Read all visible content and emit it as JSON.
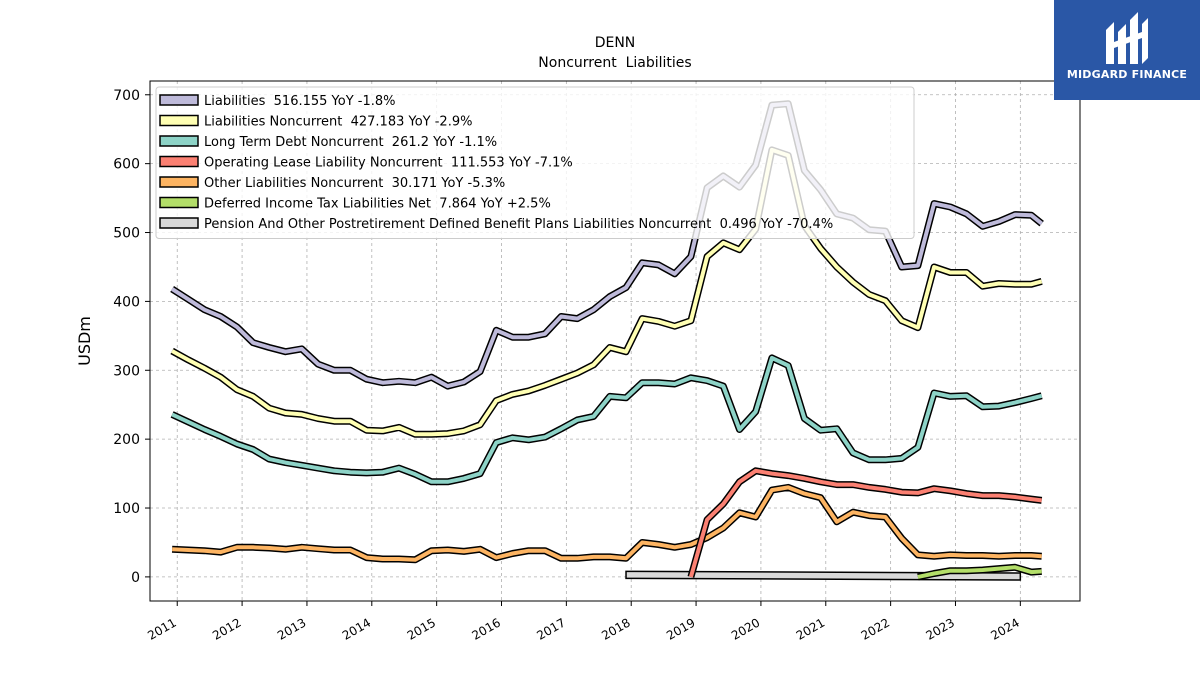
{
  "brand": {
    "name": "MIDGARD FINANCE",
    "color": "#2a57a6"
  },
  "chart_data": {
    "type": "line",
    "title": "DENN",
    "subtitle": "Noncurrent  Liabilities",
    "ylabel": "USDm",
    "xlabel": "",
    "ylim": [
      -35,
      720
    ],
    "xlim": [
      2010.58,
      2024.92
    ],
    "yticks": [
      0,
      100,
      200,
      300,
      400,
      500,
      600,
      700
    ],
    "xticks": [
      "2011",
      "2012",
      "2013",
      "2014",
      "2015",
      "2016",
      "2017",
      "2018",
      "2019",
      "2020",
      "2021",
      "2022",
      "2023",
      "2024"
    ],
    "grid": true,
    "legend_position": "top-left",
    "series": [
      {
        "name": "Liabilities",
        "legend": "Liabilities  516.155 YoY -1.8%",
        "color": "#bebada",
        "x": [
          2010.92,
          2011.17,
          2011.42,
          2011.67,
          2011.92,
          2012.17,
          2012.42,
          2012.67,
          2012.92,
          2013.17,
          2013.42,
          2013.67,
          2013.92,
          2014.17,
          2014.42,
          2014.67,
          2014.92,
          2015.17,
          2015.42,
          2015.67,
          2015.92,
          2016.17,
          2016.42,
          2016.67,
          2016.92,
          2017.17,
          2017.42,
          2017.67,
          2017.92,
          2018.17,
          2018.42,
          2018.67,
          2018.92,
          2019.17,
          2019.42,
          2019.67,
          2019.92,
          2020.17,
          2020.42,
          2020.67,
          2020.92,
          2021.17,
          2021.42,
          2021.67,
          2021.92,
          2022.17,
          2022.42,
          2022.67,
          2022.92,
          2023.17,
          2023.42,
          2023.67,
          2023.92,
          2024.17,
          2024.33
        ],
        "values": [
          418,
          403,
          388,
          378,
          363,
          340,
          333,
          327,
          331,
          309,
          300,
          300,
          287,
          282,
          284,
          282,
          290,
          277,
          283,
          298,
          358,
          348,
          348,
          353,
          378,
          375,
          388,
          407,
          420,
          456,
          453,
          440,
          465,
          565,
          582,
          566,
          598,
          685,
          687,
          590,
          562,
          527,
          521,
          504,
          502,
          450,
          452,
          542,
          537,
          527,
          509,
          516,
          526,
          525,
          513
        ]
      },
      {
        "name": "Liabilities Noncurrent",
        "legend": "Liabilities Noncurrent  427.183 YoY -2.9%",
        "color": "#ffffb3",
        "x": [
          2010.92,
          2011.17,
          2011.42,
          2011.67,
          2011.92,
          2012.17,
          2012.42,
          2012.67,
          2012.92,
          2013.17,
          2013.42,
          2013.67,
          2013.92,
          2014.17,
          2014.42,
          2014.67,
          2014.92,
          2015.17,
          2015.42,
          2015.67,
          2015.92,
          2016.17,
          2016.42,
          2016.67,
          2016.92,
          2017.17,
          2017.42,
          2017.67,
          2017.92,
          2018.17,
          2018.42,
          2018.67,
          2018.92,
          2019.17,
          2019.42,
          2019.67,
          2019.92,
          2020.17,
          2020.42,
          2020.67,
          2020.92,
          2021.17,
          2021.42,
          2021.67,
          2021.92,
          2022.17,
          2022.42,
          2022.67,
          2022.92,
          2023.17,
          2023.42,
          2023.67,
          2023.92,
          2024.17,
          2024.33
        ],
        "values": [
          328,
          315,
          303,
          290,
          272,
          262,
          245,
          238,
          236,
          230,
          226,
          226,
          213,
          212,
          217,
          207,
          207,
          208,
          212,
          221,
          256,
          265,
          270,
          278,
          287,
          296,
          308,
          333,
          327,
          375,
          371,
          364,
          372,
          465,
          485,
          475,
          505,
          620,
          612,
          510,
          477,
          450,
          428,
          410,
          401,
          372,
          362,
          450,
          442,
          442,
          422,
          426,
          425,
          425,
          429
        ]
      },
      {
        "name": "Long Term Debt Noncurrent",
        "legend": "Long Term Debt Noncurrent  261.2 YoY -1.1%",
        "color": "#8dd3c7",
        "x": [
          2010.92,
          2011.17,
          2011.42,
          2011.67,
          2011.92,
          2012.17,
          2012.42,
          2012.67,
          2012.92,
          2013.17,
          2013.42,
          2013.67,
          2013.92,
          2014.17,
          2014.42,
          2014.67,
          2014.92,
          2015.17,
          2015.42,
          2015.67,
          2015.92,
          2016.17,
          2016.42,
          2016.67,
          2016.92,
          2017.17,
          2017.42,
          2017.67,
          2017.92,
          2018.17,
          2018.42,
          2018.67,
          2018.92,
          2019.17,
          2019.42,
          2019.67,
          2019.92,
          2020.17,
          2020.42,
          2020.67,
          2020.92,
          2021.17,
          2021.42,
          2021.67,
          2021.92,
          2022.17,
          2022.42,
          2022.67,
          2022.92,
          2023.17,
          2023.42,
          2023.67,
          2023.92,
          2024.17,
          2024.33
        ],
        "values": [
          236,
          225,
          214,
          204,
          193,
          185,
          171,
          166,
          162,
          158,
          154,
          152,
          151,
          152,
          158,
          149,
          138,
          138,
          143,
          150,
          195,
          202,
          199,
          203,
          215,
          228,
          233,
          262,
          260,
          282,
          282,
          280,
          289,
          285,
          277,
          214,
          240,
          318,
          307,
          230,
          213,
          215,
          180,
          170,
          170,
          172,
          188,
          267,
          262,
          263,
          247,
          248,
          253,
          259,
          263
        ]
      },
      {
        "name": "Operating Lease Liability Noncurrent",
        "legend": "Operating Lease Liability Noncurrent  111.553 YoY -7.1%",
        "color": "#fb8072",
        "x": [
          2018.92,
          2019.17,
          2019.42,
          2019.67,
          2019.92,
          2020.17,
          2020.42,
          2020.67,
          2020.92,
          2021.17,
          2021.42,
          2021.67,
          2021.92,
          2022.17,
          2022.42,
          2022.67,
          2022.92,
          2023.17,
          2023.42,
          2023.67,
          2023.92,
          2024.17,
          2024.33
        ],
        "values": [
          0,
          83,
          106,
          138,
          154,
          150,
          147,
          143,
          138,
          134,
          134,
          130,
          127,
          123,
          122,
          128,
          125,
          121,
          118,
          118,
          116,
          113,
          111
        ]
      },
      {
        "name": "Other Liabilities Noncurrent",
        "legend": "Other Liabilities Noncurrent  30.171 YoY -5.3%",
        "color": "#fdb462",
        "x": [
          2010.92,
          2011.17,
          2011.42,
          2011.67,
          2011.92,
          2012.17,
          2012.42,
          2012.67,
          2012.92,
          2013.17,
          2013.42,
          2013.67,
          2013.92,
          2014.17,
          2014.42,
          2014.67,
          2014.92,
          2015.17,
          2015.42,
          2015.67,
          2015.92,
          2016.17,
          2016.42,
          2016.67,
          2016.92,
          2017.17,
          2017.42,
          2017.67,
          2017.92,
          2018.17,
          2018.42,
          2018.67,
          2018.92,
          2019.17,
          2019.42,
          2019.67,
          2019.92,
          2020.17,
          2020.42,
          2020.67,
          2020.92,
          2021.17,
          2021.42,
          2021.67,
          2021.92,
          2022.17,
          2022.42,
          2022.67,
          2022.92,
          2023.17,
          2023.42,
          2023.67,
          2023.92,
          2024.17,
          2024.33
        ],
        "values": [
          40,
          39,
          38,
          36,
          43,
          43,
          42,
          40,
          43,
          41,
          39,
          39,
          28,
          26,
          26,
          25,
          38,
          39,
          37,
          40,
          28,
          34,
          38,
          38,
          27,
          27,
          29,
          29,
          27,
          50,
          47,
          43,
          47,
          57,
          71,
          93,
          87,
          126,
          130,
          121,
          115,
          80,
          94,
          89,
          87,
          56,
          32,
          30,
          32,
          31,
          31,
          30,
          31,
          31,
          30
        ]
      },
      {
        "name": "Deferred Income Tax Liabilities Net",
        "legend": "Deferred Income Tax Liabilities Net  7.864 YoY +2.5%",
        "color": "#b3de69",
        "x": [
          2022.42,
          2022.67,
          2022.92,
          2023.17,
          2023.42,
          2023.67,
          2023.92,
          2024.17,
          2024.33
        ],
        "values": [
          0,
          5,
          9,
          9,
          10,
          12,
          14,
          7,
          8
        ]
      },
      {
        "name": "Pension And Other Postretirement Defined Benefit Plans Liabilities Noncurrent",
        "legend": "Pension And Other Postretirement Defined Benefit Plans Liabilities Noncurrent  0.496 YoY -70.4%",
        "color": "#d9d9d9",
        "x": [
          2017.92,
          2024.0
        ],
        "values": [
          3,
          0.5
        ],
        "shape": "band"
      }
    ]
  }
}
